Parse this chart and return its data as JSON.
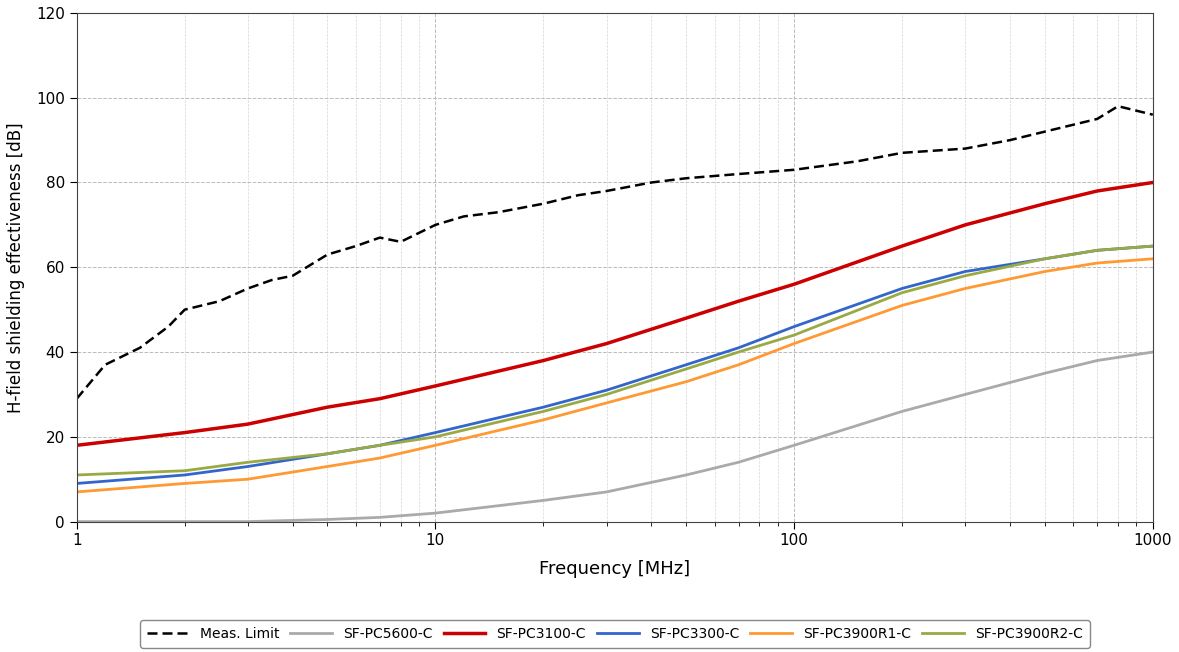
{
  "title": "",
  "xlabel": "Frequency [MHz]",
  "ylabel": "H-field shielding effectiveness [dB]",
  "xlim": [
    1,
    1000
  ],
  "ylim": [
    0,
    120
  ],
  "yticks": [
    0,
    20,
    40,
    60,
    80,
    100,
    120
  ],
  "background_color": "#ffffff",
  "series": [
    {
      "label": "Meas. Limit",
      "color": "#000000",
      "linestyle": "dashed",
      "linewidth": 1.8,
      "x": [
        1,
        1.2,
        1.5,
        1.8,
        2,
        2.5,
        3,
        3.5,
        4,
        5,
        6,
        7,
        8,
        10,
        12,
        15,
        20,
        25,
        30,
        40,
        50,
        70,
        100,
        150,
        200,
        300,
        400,
        500,
        700,
        800,
        1000
      ],
      "y": [
        29,
        37,
        41,
        46,
        50,
        52,
        55,
        57,
        58,
        63,
        65,
        67,
        66,
        70,
        72,
        73,
        75,
        77,
        78,
        80,
        81,
        82,
        83,
        85,
        87,
        88,
        90,
        92,
        95,
        98,
        96
      ]
    },
    {
      "label": "SF-PC5600-C",
      "color": "#aaaaaa",
      "linestyle": "solid",
      "linewidth": 2.0,
      "x": [
        1,
        2,
        3,
        5,
        7,
        10,
        20,
        30,
        50,
        70,
        100,
        200,
        300,
        500,
        700,
        1000
      ],
      "y": [
        0,
        0,
        0,
        0.5,
        1,
        2,
        5,
        7,
        11,
        14,
        18,
        26,
        30,
        35,
        38,
        40
      ]
    },
    {
      "label": "SF-PC3100-C",
      "color": "#cc0000",
      "linestyle": "solid",
      "linewidth": 2.5,
      "x": [
        1,
        2,
        3,
        5,
        7,
        10,
        20,
        30,
        50,
        70,
        100,
        200,
        300,
        500,
        700,
        1000
      ],
      "y": [
        18,
        21,
        23,
        27,
        29,
        32,
        38,
        42,
        48,
        52,
        56,
        65,
        70,
        75,
        78,
        80
      ]
    },
    {
      "label": "SF-PC3300-C",
      "color": "#3366cc",
      "linestyle": "solid",
      "linewidth": 2.0,
      "x": [
        1,
        2,
        3,
        5,
        7,
        10,
        20,
        30,
        50,
        70,
        100,
        200,
        300,
        500,
        700,
        1000
      ],
      "y": [
        9,
        11,
        13,
        16,
        18,
        21,
        27,
        31,
        37,
        41,
        46,
        55,
        59,
        62,
        64,
        65
      ]
    },
    {
      "label": "SF-PC3900R1-C",
      "color": "#ff9933",
      "linestyle": "solid",
      "linewidth": 2.0,
      "x": [
        1,
        2,
        3,
        5,
        7,
        10,
        20,
        30,
        50,
        70,
        100,
        200,
        300,
        500,
        700,
        1000
      ],
      "y": [
        7,
        9,
        10,
        13,
        15,
        18,
        24,
        28,
        33,
        37,
        42,
        51,
        55,
        59,
        61,
        62
      ]
    },
    {
      "label": "SF-PC3900R2-C",
      "color": "#99aa44",
      "linestyle": "solid",
      "linewidth": 2.0,
      "x": [
        1,
        2,
        3,
        5,
        7,
        10,
        20,
        30,
        50,
        70,
        100,
        200,
        300,
        500,
        700,
        1000
      ],
      "y": [
        11,
        12,
        14,
        16,
        18,
        20,
        26,
        30,
        36,
        40,
        44,
        54,
        58,
        62,
        64,
        65
      ]
    }
  ],
  "figsize": [
    11.79,
    6.52
  ],
  "dpi": 100,
  "legend": {
    "ncol": 6,
    "fontsize": 10,
    "handlelength": 3.0,
    "borderpad": 0.5,
    "columnspacing": 0.8
  }
}
